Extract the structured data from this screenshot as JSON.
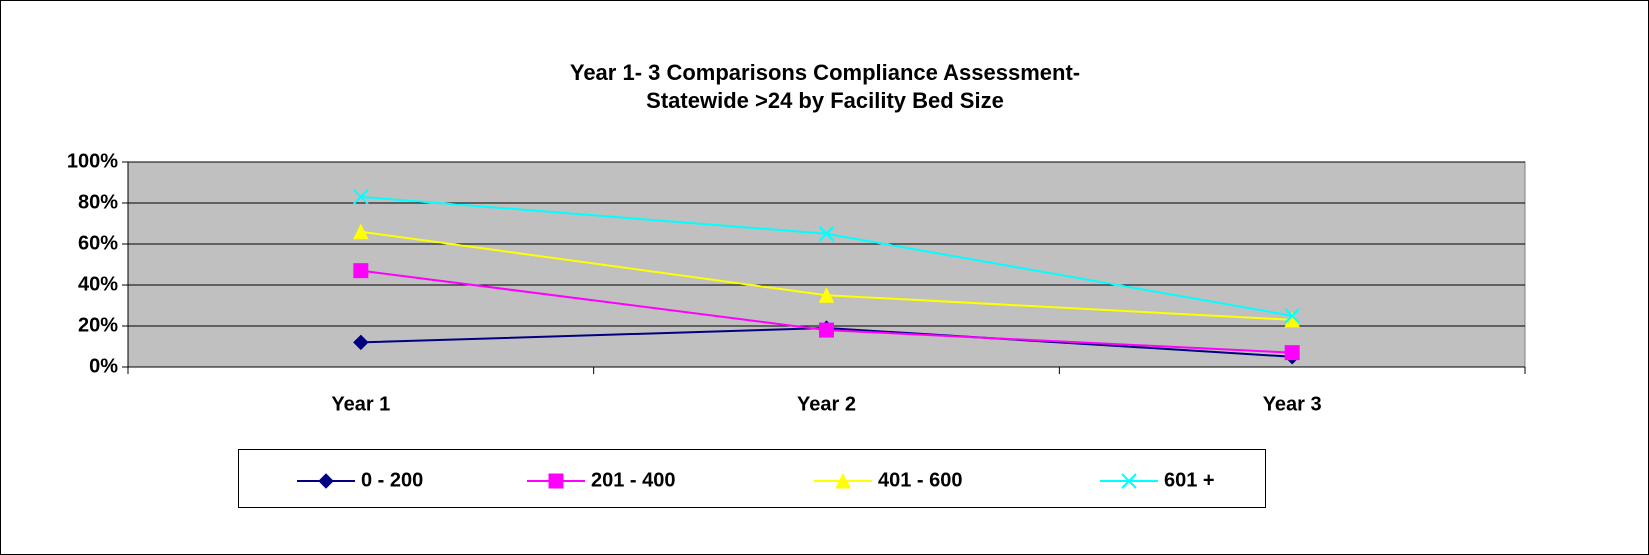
{
  "chart_data": {
    "type": "line",
    "title": [
      "Year 1- 3 Comparisons Compliance Assessment-",
      "Statewide >24 by Facility Bed Size"
    ],
    "categories": [
      "Year 1",
      "Year 2",
      "Year 3"
    ],
    "series": [
      {
        "name": "0 - 200",
        "color": "#000080",
        "marker": "diamond",
        "values": [
          12,
          19,
          5
        ]
      },
      {
        "name": "201 - 400",
        "color": "#ff00ff",
        "marker": "square",
        "values": [
          47,
          18,
          7
        ]
      },
      {
        "name": "401 - 600",
        "color": "#ffff00",
        "marker": "triangle",
        "values": [
          66,
          35,
          23
        ]
      },
      {
        "name": "601 +",
        "color": "#00ffff",
        "marker": "x",
        "values": [
          83,
          65,
          25
        ]
      }
    ],
    "ylim": [
      0,
      100
    ],
    "yticks": [
      {
        "value": 0,
        "label": "0%"
      },
      {
        "value": 20,
        "label": "20%"
      },
      {
        "value": 40,
        "label": "40%"
      },
      {
        "value": 60,
        "label": "60%"
      },
      {
        "value": 80,
        "label": "80%"
      },
      {
        "value": 100,
        "label": "100%"
      }
    ],
    "grid": true,
    "legend": "bottom"
  }
}
